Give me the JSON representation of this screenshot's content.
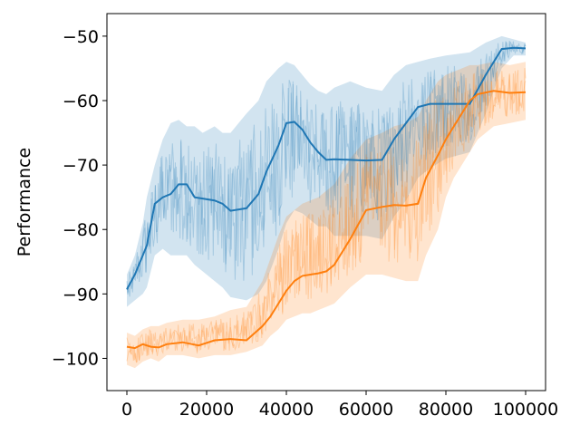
{
  "chart_data": {
    "type": "line",
    "title": "",
    "xlabel": "",
    "ylabel": "Performance",
    "xlim": [
      -5000,
      105000
    ],
    "ylim": [
      -105,
      -46.5
    ],
    "xticks": [
      0,
      20000,
      40000,
      60000,
      80000,
      100000
    ],
    "xtick_labels": [
      "0",
      "20000",
      "40000",
      "60000",
      "80000",
      "100000"
    ],
    "yticks": [
      -100,
      -90,
      -80,
      -70,
      -60,
      -50
    ],
    "ytick_labels": [
      "−100",
      "−90",
      "−80",
      "−70",
      "−60",
      "−50"
    ],
    "grid": false,
    "legend": "none",
    "series": [
      {
        "color": "#1f77b4",
        "x": [
          0,
          2000,
          4000,
          5000,
          7000,
          9000,
          11000,
          13000,
          15000,
          17000,
          19000,
          22000,
          24000,
          26000,
          30000,
          33000,
          35000,
          38000,
          40000,
          42000,
          44000,
          46000,
          48000,
          50000,
          52000,
          56000,
          60000,
          64000,
          67000,
          70000,
          73000,
          76000,
          80000,
          86000,
          90000,
          94000,
          97000,
          100000
        ],
        "mean": [
          -89.3,
          -87.0,
          -84.0,
          -82.5,
          -76.0,
          -75.0,
          -74.5,
          -73.0,
          -73.0,
          -75.0,
          -75.2,
          -75.5,
          -76.0,
          -77.1,
          -76.7,
          -74.5,
          -71.0,
          -67.0,
          -63.5,
          -63.3,
          -64.5,
          -66.5,
          -68.0,
          -69.2,
          -69.1,
          -69.2,
          -69.3,
          -69.2,
          -66.0,
          -63.5,
          -61.0,
          -60.5,
          -60.5,
          -60.5,
          -56.0,
          -52.0,
          -51.8,
          -51.9
        ],
        "upper": [
          -87.0,
          -84.0,
          -79.0,
          -75.0,
          -70.0,
          -66.0,
          -63.5,
          -63.0,
          -64.0,
          -64.0,
          -65.0,
          -64.0,
          -65.0,
          -65.0,
          -62.0,
          -60.0,
          -57.0,
          -55.0,
          -54.0,
          -54.5,
          -56.0,
          -57.5,
          -58.5,
          -59.0,
          -58.0,
          -57.0,
          -58.0,
          -58.5,
          -56.0,
          -54.5,
          -54.0,
          -53.5,
          -53.0,
          -52.5,
          -51.0,
          -50.0,
          -50.5,
          -51.0
        ],
        "lower": [
          -92.0,
          -91.0,
          -90.0,
          -89.0,
          -84.0,
          -83.0,
          -84.0,
          -84.0,
          -84.0,
          -85.5,
          -86.5,
          -88.0,
          -89.0,
          -90.5,
          -91.0,
          -90.0,
          -88.0,
          -83.0,
          -79.0,
          -77.0,
          -77.5,
          -78.5,
          -79.5,
          -79.5,
          -81.0,
          -81.0,
          -81.0,
          -81.5,
          -78.0,
          -75.5,
          -72.0,
          -70.5,
          -69.0,
          -68.0,
          -62.0,
          -55.0,
          -53.0,
          -53.0
        ]
      },
      {
        "color": "#ff7f0e",
        "x": [
          0,
          2000,
          4000,
          6000,
          8000,
          10000,
          14000,
          18000,
          22000,
          26000,
          30000,
          34000,
          36000,
          38000,
          40000,
          42000,
          44000,
          46000,
          48000,
          50000,
          52000,
          56000,
          60000,
          64000,
          67000,
          70000,
          73000,
          75000,
          78000,
          80000,
          82000,
          86000,
          88000,
          92000,
          96000,
          100000
        ],
        "mean": [
          -98.2,
          -98.4,
          -97.8,
          -98.2,
          -98.3,
          -97.8,
          -97.5,
          -98.0,
          -97.2,
          -97.0,
          -97.2,
          -95.0,
          -93.5,
          -91.5,
          -89.5,
          -88.0,
          -87.2,
          -87.0,
          -86.8,
          -86.5,
          -85.5,
          -81.5,
          -77.0,
          -76.5,
          -76.2,
          -76.3,
          -76.0,
          -72.0,
          -68.5,
          -66.0,
          -64.0,
          -60.0,
          -59.0,
          -58.5,
          -58.8,
          -58.7
        ],
        "upper": [
          -96.0,
          -96.5,
          -95.5,
          -95.0,
          -95.0,
          -94.5,
          -94.0,
          -94.0,
          -93.5,
          -92.5,
          -92.0,
          -88.0,
          -84.5,
          -81.0,
          -78.0,
          -77.0,
          -76.0,
          -75.5,
          -75.0,
          -74.0,
          -73.0,
          -69.0,
          -66.0,
          -65.0,
          -64.0,
          -63.5,
          -62.5,
          -60.0,
          -57.0,
          -56.0,
          -55.5,
          -54.5,
          -54.5,
          -54.0,
          -54.5,
          -54.0
        ],
        "lower": [
          -101.0,
          -101.5,
          -100.5,
          -100.0,
          -100.5,
          -99.5,
          -99.5,
          -100.0,
          -99.5,
          -99.5,
          -99.0,
          -98.0,
          -96.5,
          -95.5,
          -94.0,
          -93.5,
          -93.0,
          -93.0,
          -92.5,
          -92.0,
          -91.5,
          -89.0,
          -87.0,
          -87.0,
          -87.5,
          -88.0,
          -88.0,
          -84.0,
          -80.0,
          -75.0,
          -72.0,
          -68.0,
          -66.0,
          -64.0,
          -63.5,
          -63.0
        ]
      }
    ]
  }
}
